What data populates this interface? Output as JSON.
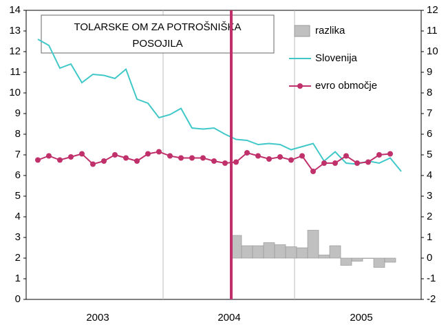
{
  "chart_data": {
    "type": "line",
    "title_lines": [
      "TOLARSKE OM ZA POTROŠNIŠKA",
      "POSOJILA"
    ],
    "categories": [
      null,
      null,
      null,
      null,
      null,
      null,
      null,
      null,
      null,
      null,
      null,
      null,
      null,
      null,
      null,
      null,
      null,
      null,
      null,
      null,
      null,
      null,
      null,
      null,
      null,
      null,
      null,
      null,
      null,
      null,
      null,
      null,
      null,
      null
    ],
    "x_group_labels": [
      "2003",
      "2004",
      "2005"
    ],
    "series": [
      {
        "name": "razlika",
        "type": "bar",
        "axis": "y2",
        "color": "#c0c0c0",
        "values": [
          null,
          null,
          null,
          null,
          null,
          null,
          null,
          null,
          null,
          null,
          null,
          null,
          null,
          null,
          null,
          null,
          null,
          null,
          1.1,
          0.6,
          0.6,
          0.75,
          0.65,
          0.55,
          0.5,
          1.35,
          0.15,
          0.6,
          -0.35,
          -0.15,
          0,
          -0.45,
          -0.2,
          null
        ]
      },
      {
        "name": "Slovenija",
        "type": "line",
        "color": "#40c8c8",
        "values": [
          12.6,
          12.3,
          11.2,
          11.4,
          10.5,
          10.9,
          10.85,
          10.7,
          11.15,
          9.7,
          9.5,
          8.8,
          8.95,
          9.25,
          8.3,
          8.25,
          8.3,
          8.0,
          7.75,
          7.7,
          7.5,
          7.55,
          7.5,
          7.25,
          7.4,
          7.55,
          6.7,
          7.15,
          6.6,
          6.55,
          6.7,
          6.6,
          6.85,
          6.2
        ]
      },
      {
        "name": "evro območje",
        "type": "line",
        "marker": true,
        "color": "#c0306a",
        "values": [
          6.75,
          6.95,
          6.75,
          6.9,
          7.05,
          6.55,
          6.7,
          7.0,
          6.85,
          6.7,
          7.05,
          7.15,
          6.95,
          6.85,
          6.85,
          6.85,
          6.7,
          6.6,
          6.65,
          7.1,
          6.95,
          6.8,
          6.9,
          6.75,
          6.95,
          6.2,
          6.6,
          6.6,
          6.95,
          6.6,
          6.65,
          7.0,
          7.05,
          null
        ]
      }
    ],
    "ylim": [
      0,
      14
    ],
    "yticks": [
      0,
      1,
      2,
      3,
      4,
      5,
      6,
      7,
      8,
      9,
      10,
      11,
      12,
      13,
      14
    ],
    "y2lim": [
      -2,
      12
    ],
    "y2ticks": [
      -2,
      -1,
      0,
      1,
      2,
      3,
      4,
      5,
      6,
      7,
      8,
      9,
      10,
      11,
      12
    ]
  }
}
